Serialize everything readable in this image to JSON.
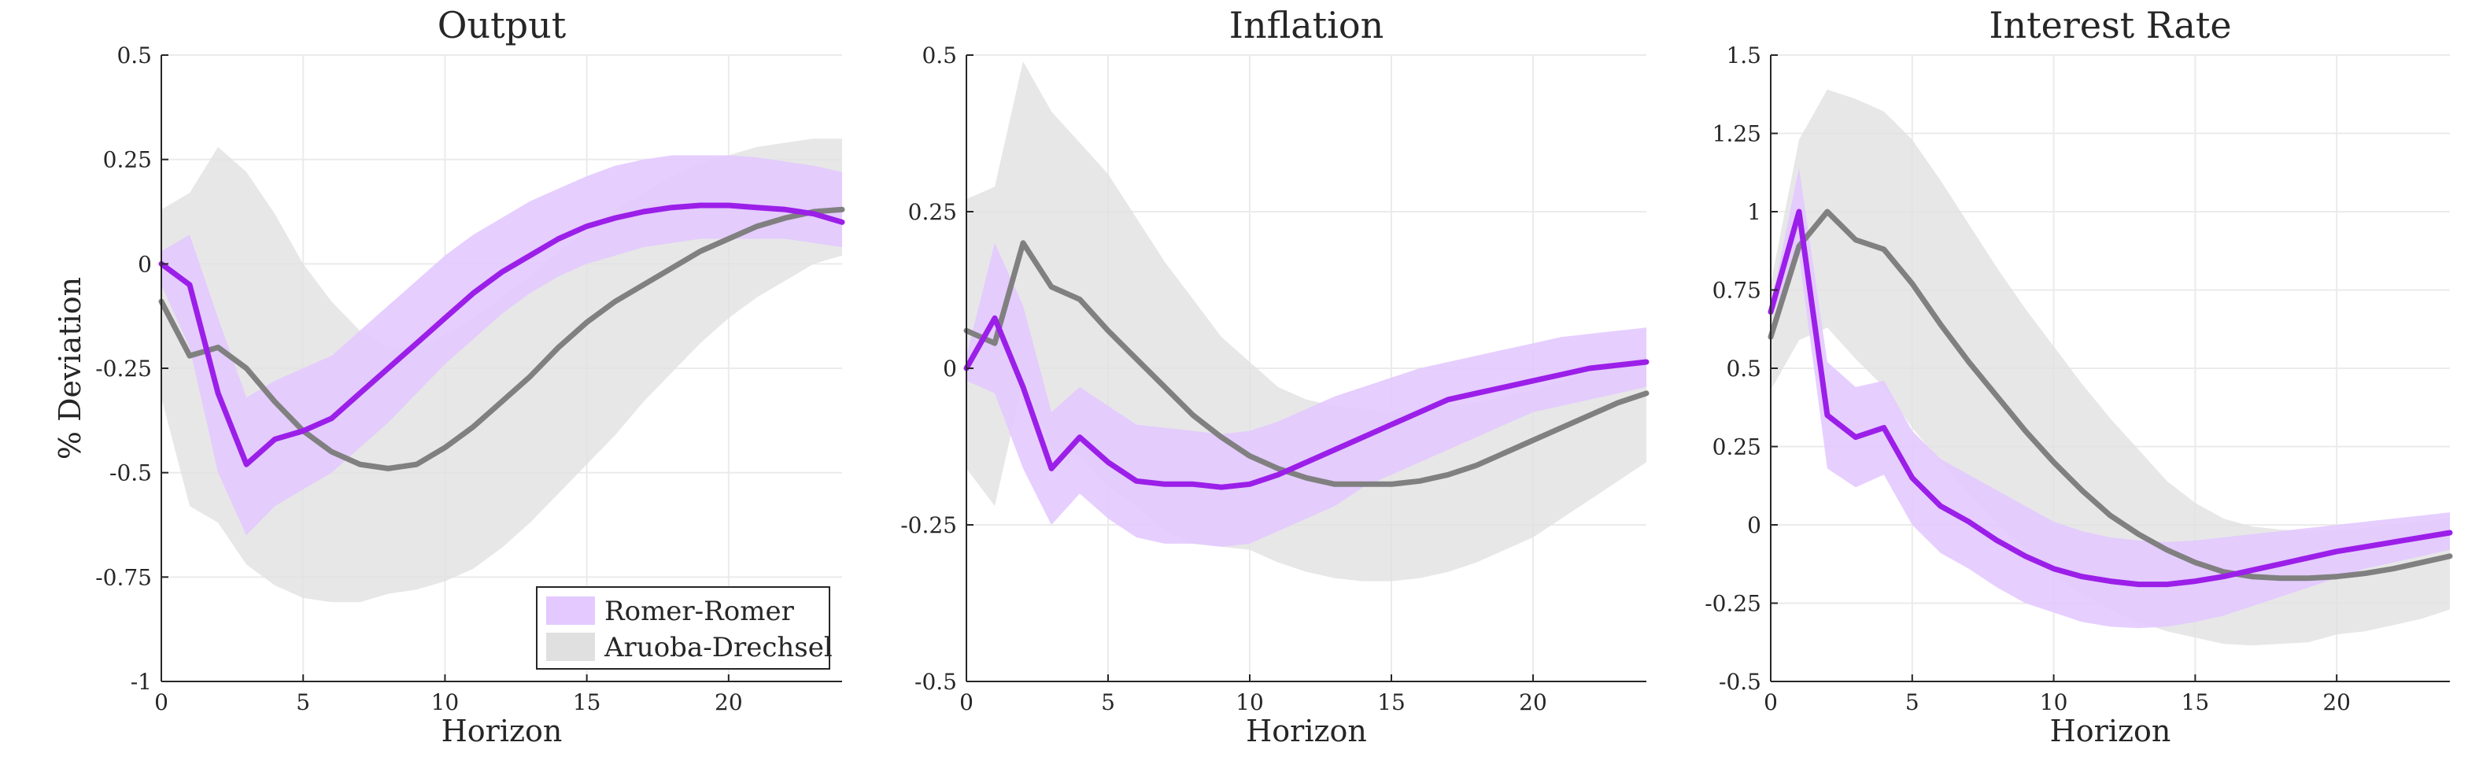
{
  "colors": {
    "romer_line": "#9b1fe8",
    "romer_band": "#e3c9ff",
    "aruoba_line": "#808080",
    "aruoba_band": "#e0e0e0",
    "grid": "#ebebeb",
    "axis": "#262626"
  },
  "legend": {
    "placement": "bottom-right of first panel",
    "items": [
      {
        "label": "Romer-Romer",
        "color": "#e3c9ff"
      },
      {
        "label": "Aruoba-Drechsel",
        "color": "#e0e0e0"
      }
    ]
  },
  "chart_data": [
    {
      "type": "line",
      "title": "Output",
      "xlabel": "Horizon",
      "ylabel": "% Deviation",
      "xlim": [
        0,
        24
      ],
      "ylim": [
        -1,
        0.5
      ],
      "xticks": [
        0,
        5,
        10,
        15,
        20
      ],
      "xtick_labels": [
        "0",
        "5",
        "10",
        "15",
        "20"
      ],
      "yticks": [
        -1,
        -0.75,
        -0.5,
        -0.25,
        0,
        0.25,
        0.5
      ],
      "ytick_labels": [
        "-1",
        "-0.75",
        "-0.5",
        "-0.25",
        "0",
        "0.25",
        "0.5"
      ],
      "grid": true,
      "x": [
        0,
        1,
        2,
        3,
        4,
        5,
        6,
        7,
        8,
        9,
        10,
        11,
        12,
        13,
        14,
        15,
        16,
        17,
        18,
        19,
        20,
        21,
        22,
        23,
        24
      ],
      "series": [
        {
          "name": "Romer-Romer",
          "values": [
            0.0,
            -0.05,
            -0.31,
            -0.48,
            -0.42,
            -0.4,
            -0.37,
            -0.31,
            -0.25,
            -0.19,
            -0.13,
            -0.07,
            -0.02,
            0.02,
            0.06,
            0.09,
            0.11,
            0.125,
            0.135,
            0.14,
            0.14,
            0.135,
            0.13,
            0.12,
            0.1
          ],
          "lower": [
            -0.05,
            -0.2,
            -0.5,
            -0.65,
            -0.58,
            -0.54,
            -0.5,
            -0.44,
            -0.38,
            -0.31,
            -0.24,
            -0.18,
            -0.12,
            -0.07,
            -0.03,
            0.0,
            0.02,
            0.04,
            0.05,
            0.06,
            0.06,
            0.06,
            0.06,
            0.05,
            0.04
          ],
          "upper": [
            0.03,
            0.07,
            -0.13,
            -0.32,
            -0.28,
            -0.25,
            -0.22,
            -0.16,
            -0.1,
            -0.04,
            0.02,
            0.07,
            0.11,
            0.15,
            0.18,
            0.21,
            0.235,
            0.25,
            0.26,
            0.26,
            0.26,
            0.255,
            0.245,
            0.235,
            0.22
          ]
        },
        {
          "name": "Aruoba-Drechsel",
          "values": [
            -0.09,
            -0.22,
            -0.2,
            -0.25,
            -0.33,
            -0.4,
            -0.45,
            -0.48,
            -0.49,
            -0.48,
            -0.44,
            -0.39,
            -0.33,
            -0.27,
            -0.2,
            -0.14,
            -0.09,
            -0.05,
            -0.01,
            0.03,
            0.06,
            0.09,
            0.11,
            0.125,
            0.13
          ],
          "lower": [
            -0.32,
            -0.58,
            -0.62,
            -0.72,
            -0.77,
            -0.8,
            -0.81,
            -0.81,
            -0.79,
            -0.78,
            -0.76,
            -0.73,
            -0.68,
            -0.62,
            -0.55,
            -0.48,
            -0.41,
            -0.33,
            -0.26,
            -0.19,
            -0.13,
            -0.08,
            -0.04,
            0.0,
            0.02
          ],
          "upper": [
            0.13,
            0.17,
            0.28,
            0.22,
            0.12,
            0.0,
            -0.09,
            -0.16,
            -0.2,
            -0.2,
            -0.17,
            -0.13,
            -0.08,
            -0.03,
            0.03,
            0.08,
            0.13,
            0.17,
            0.21,
            0.24,
            0.26,
            0.28,
            0.29,
            0.3,
            0.3
          ]
        }
      ]
    },
    {
      "type": "line",
      "title": "Inflation",
      "xlabel": "Horizon",
      "ylabel": "",
      "xlim": [
        0,
        24
      ],
      "ylim": [
        -0.5,
        0.5
      ],
      "xticks": [
        0,
        5,
        10,
        15,
        20
      ],
      "xtick_labels": [
        "0",
        "5",
        "10",
        "15",
        "20"
      ],
      "yticks": [
        -0.5,
        -0.25,
        0,
        0.25,
        0.5
      ],
      "ytick_labels": [
        "-0.5",
        "-0.25",
        "0",
        "0.25",
        "0.5"
      ],
      "grid": true,
      "x": [
        0,
        1,
        2,
        3,
        4,
        5,
        6,
        7,
        8,
        9,
        10,
        11,
        12,
        13,
        14,
        15,
        16,
        17,
        18,
        19,
        20,
        21,
        22,
        23,
        24
      ],
      "series": [
        {
          "name": "Romer-Romer",
          "values": [
            0.0,
            0.08,
            -0.03,
            -0.16,
            -0.11,
            -0.15,
            -0.18,
            -0.185,
            -0.185,
            -0.19,
            -0.185,
            -0.17,
            -0.15,
            -0.13,
            -0.11,
            -0.09,
            -0.07,
            -0.05,
            -0.04,
            -0.03,
            -0.02,
            -0.01,
            0.0,
            0.005,
            0.01
          ],
          "lower": [
            -0.02,
            -0.04,
            -0.16,
            -0.25,
            -0.2,
            -0.24,
            -0.27,
            -0.28,
            -0.28,
            -0.285,
            -0.28,
            -0.26,
            -0.24,
            -0.22,
            -0.19,
            -0.17,
            -0.15,
            -0.13,
            -0.11,
            -0.09,
            -0.07,
            -0.06,
            -0.05,
            -0.04,
            -0.03
          ],
          "upper": [
            0.02,
            0.2,
            0.1,
            -0.07,
            -0.03,
            -0.06,
            -0.09,
            -0.095,
            -0.1,
            -0.105,
            -0.1,
            -0.085,
            -0.065,
            -0.045,
            -0.03,
            -0.015,
            0.0,
            0.01,
            0.02,
            0.03,
            0.04,
            0.05,
            0.055,
            0.06,
            0.065
          ]
        },
        {
          "name": "Aruoba-Drechsel",
          "values": [
            0.06,
            0.04,
            0.2,
            0.13,
            0.11,
            0.06,
            0.015,
            -0.03,
            -0.075,
            -0.11,
            -0.14,
            -0.16,
            -0.175,
            -0.185,
            -0.185,
            -0.185,
            -0.18,
            -0.17,
            -0.155,
            -0.135,
            -0.115,
            -0.095,
            -0.075,
            -0.055,
            -0.04
          ],
          "lower": [
            -0.16,
            -0.22,
            -0.02,
            -0.13,
            -0.14,
            -0.19,
            -0.22,
            -0.26,
            -0.28,
            -0.285,
            -0.29,
            -0.31,
            -0.325,
            -0.335,
            -0.34,
            -0.34,
            -0.335,
            -0.325,
            -0.31,
            -0.29,
            -0.27,
            -0.24,
            -0.21,
            -0.18,
            -0.15
          ],
          "upper": [
            0.27,
            0.29,
            0.49,
            0.41,
            0.36,
            0.31,
            0.24,
            0.17,
            0.11,
            0.05,
            0.01,
            -0.03,
            -0.05,
            -0.06,
            -0.065,
            -0.07,
            -0.065,
            -0.06,
            -0.055,
            -0.045,
            -0.035,
            -0.02,
            -0.005,
            0.01,
            0.02
          ]
        }
      ]
    },
    {
      "type": "line",
      "title": "Interest Rate",
      "xlabel": "Horizon",
      "ylabel": "",
      "xlim": [
        0,
        24
      ],
      "ylim": [
        -0.5,
        1.5
      ],
      "xticks": [
        0,
        5,
        10,
        15,
        20
      ],
      "xtick_labels": [
        "0",
        "5",
        "10",
        "15",
        "20"
      ],
      "yticks": [
        -0.5,
        -0.25,
        0,
        0.25,
        0.5,
        0.75,
        1,
        1.25,
        1.5
      ],
      "ytick_labels": [
        "-0.5",
        "-0.25",
        "0",
        "0.25",
        "0.5",
        "0.75",
        "1",
        "1.25",
        "1.5"
      ],
      "grid": true,
      "x": [
        0,
        1,
        2,
        3,
        4,
        5,
        6,
        7,
        8,
        9,
        10,
        11,
        12,
        13,
        14,
        15,
        16,
        17,
        18,
        19,
        20,
        21,
        22,
        23,
        24
      ],
      "series": [
        {
          "name": "Romer-Romer",
          "values": [
            0.68,
            1.0,
            0.35,
            0.28,
            0.31,
            0.15,
            0.06,
            0.01,
            -0.05,
            -0.1,
            -0.14,
            -0.165,
            -0.18,
            -0.19,
            -0.19,
            -0.18,
            -0.165,
            -0.145,
            -0.125,
            -0.105,
            -0.085,
            -0.07,
            -0.055,
            -0.04,
            -0.025
          ],
          "lower": [
            0.66,
            0.86,
            0.18,
            0.12,
            0.16,
            0.0,
            -0.09,
            -0.14,
            -0.2,
            -0.25,
            -0.28,
            -0.31,
            -0.325,
            -0.33,
            -0.325,
            -0.31,
            -0.29,
            -0.26,
            -0.23,
            -0.2,
            -0.17,
            -0.14,
            -0.12,
            -0.1,
            -0.08
          ],
          "upper": [
            0.7,
            1.14,
            0.52,
            0.44,
            0.46,
            0.3,
            0.21,
            0.16,
            0.11,
            0.06,
            0.01,
            -0.02,
            -0.04,
            -0.05,
            -0.055,
            -0.05,
            -0.04,
            -0.03,
            -0.02,
            -0.01,
            0.0,
            0.01,
            0.02,
            0.03,
            0.04
          ]
        },
        {
          "name": "Aruoba-Drechsel",
          "values": [
            0.6,
            0.89,
            1.0,
            0.91,
            0.88,
            0.77,
            0.64,
            0.52,
            0.41,
            0.3,
            0.2,
            0.11,
            0.03,
            -0.03,
            -0.08,
            -0.12,
            -0.15,
            -0.165,
            -0.17,
            -0.17,
            -0.165,
            -0.155,
            -0.14,
            -0.12,
            -0.1
          ],
          "lower": [
            0.43,
            0.59,
            0.63,
            0.53,
            0.44,
            0.31,
            0.2,
            0.1,
            0.01,
            -0.08,
            -0.16,
            -0.22,
            -0.27,
            -0.31,
            -0.34,
            -0.36,
            -0.38,
            -0.385,
            -0.38,
            -0.375,
            -0.35,
            -0.34,
            -0.32,
            -0.3,
            -0.27
          ],
          "upper": [
            0.77,
            1.23,
            1.39,
            1.36,
            1.32,
            1.23,
            1.1,
            0.96,
            0.82,
            0.69,
            0.57,
            0.45,
            0.34,
            0.24,
            0.14,
            0.07,
            0.02,
            -0.005,
            -0.015,
            -0.02,
            -0.02,
            -0.01,
            0.0,
            0.01,
            0.02
          ]
        }
      ]
    }
  ]
}
